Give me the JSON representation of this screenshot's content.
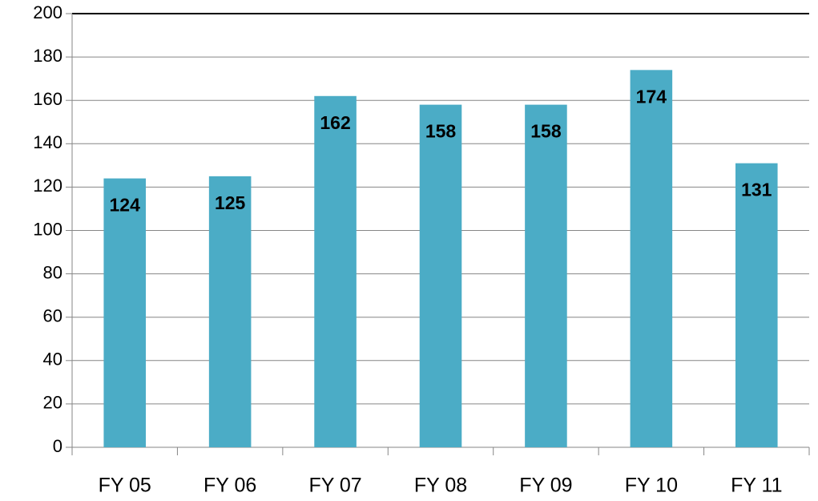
{
  "chart_data": {
    "type": "bar",
    "categories": [
      "FY 05",
      "FY 06",
      "FY 07",
      "FY 08",
      "FY 09",
      "FY 10",
      "FY 11"
    ],
    "values": [
      124,
      125,
      162,
      158,
      158,
      174,
      131
    ],
    "color": "#4bacc6",
    "ylim": [
      0,
      200
    ],
    "yticks": [
      0,
      20,
      40,
      60,
      80,
      100,
      120,
      140,
      160,
      180,
      200
    ],
    "grid": true
  }
}
